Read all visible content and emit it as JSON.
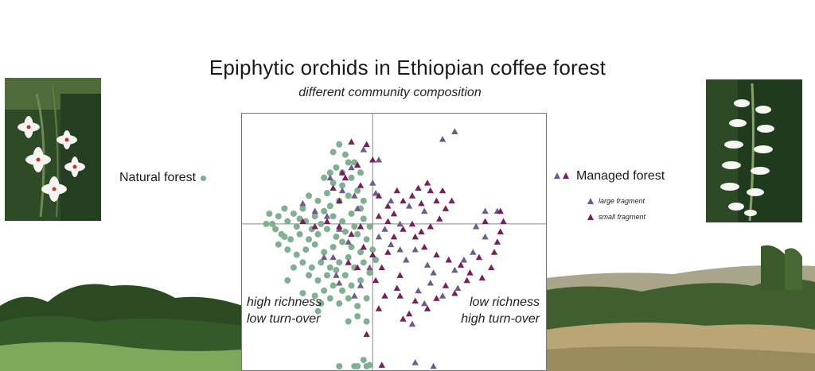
{
  "title": "Epiphytic orchids in Ethiopian coffee forest",
  "subtitle": "different community composition",
  "legend": {
    "natural": "Natural forest",
    "managed": "Managed forest",
    "large": "large fragment",
    "small": "small fragment"
  },
  "annotations": {
    "left_line1": "high richness",
    "left_line2": "low turn-over",
    "right_line1": "low richness",
    "right_line2": "high turn-over"
  },
  "colors": {
    "natural": "#7fb08f",
    "large": "#6d5b8f",
    "small": "#7a1f5c"
  },
  "chart_data": {
    "type": "scatter",
    "xlim": [
      0,
      100
    ],
    "ylim": [
      0,
      100
    ],
    "axes_lines": {
      "x": 43,
      "y": 57
    },
    "series": [
      {
        "name": "Natural forest",
        "marker": "circle",
        "points": [
          [
            32,
            88
          ],
          [
            34,
            84
          ],
          [
            35,
            81
          ],
          [
            31,
            79
          ],
          [
            29,
            77
          ],
          [
            27,
            75
          ],
          [
            30,
            73
          ],
          [
            33,
            72
          ],
          [
            36,
            75
          ],
          [
            38,
            70
          ],
          [
            35,
            68
          ],
          [
            32,
            66
          ],
          [
            28,
            69
          ],
          [
            25,
            66
          ],
          [
            22,
            68
          ],
          [
            20,
            63
          ],
          [
            17,
            61
          ],
          [
            14,
            63
          ],
          [
            12,
            60
          ],
          [
            15,
            58
          ],
          [
            18,
            56
          ],
          [
            21,
            58
          ],
          [
            24,
            60
          ],
          [
            27,
            62
          ],
          [
            30,
            60
          ],
          [
            33,
            58
          ],
          [
            36,
            61
          ],
          [
            39,
            63
          ],
          [
            40,
            59
          ],
          [
            37,
            56
          ],
          [
            34,
            54
          ],
          [
            31,
            52
          ],
          [
            28,
            55
          ],
          [
            25,
            53
          ],
          [
            22,
            51
          ],
          [
            19,
            53
          ],
          [
            16,
            51
          ],
          [
            13,
            53
          ],
          [
            11,
            55
          ],
          [
            10,
            57
          ],
          [
            12,
            49
          ],
          [
            15,
            47
          ],
          [
            18,
            45
          ],
          [
            21,
            47
          ],
          [
            24,
            49
          ],
          [
            27,
            46
          ],
          [
            30,
            48
          ],
          [
            33,
            50
          ],
          [
            36,
            48
          ],
          [
            39,
            46
          ],
          [
            41,
            51
          ],
          [
            38,
            53
          ],
          [
            35,
            44
          ],
          [
            32,
            42
          ],
          [
            29,
            40
          ],
          [
            26,
            42
          ],
          [
            23,
            40
          ],
          [
            20,
            42
          ],
          [
            17,
            40
          ],
          [
            22,
            37
          ],
          [
            25,
            35
          ],
          [
            28,
            37
          ],
          [
            31,
            39
          ],
          [
            34,
            37
          ],
          [
            37,
            40
          ],
          [
            40,
            42
          ],
          [
            42,
            38
          ],
          [
            39,
            35
          ],
          [
            36,
            33
          ],
          [
            33,
            31
          ],
          [
            30,
            33
          ],
          [
            27,
            31
          ],
          [
            24,
            29
          ],
          [
            26,
            26
          ],
          [
            29,
            28
          ],
          [
            32,
            26
          ],
          [
            35,
            28
          ],
          [
            38,
            25
          ],
          [
            41,
            28
          ],
          [
            38,
            21
          ],
          [
            35,
            19
          ],
          [
            41,
            19
          ],
          [
            25,
            23
          ],
          [
            20,
            30
          ],
          [
            15,
            35
          ],
          [
            8,
            57
          ],
          [
            9,
            61
          ],
          [
            43,
            47
          ],
          [
            44,
            43
          ],
          [
            42,
            56
          ],
          [
            40,
            66
          ],
          [
            37,
            81
          ],
          [
            39,
            77
          ],
          [
            30,
            85
          ],
          [
            33,
            77
          ],
          [
            29,
            64
          ],
          [
            26,
            57
          ],
          [
            23,
            55
          ],
          [
            19,
            59
          ],
          [
            14,
            52
          ],
          [
            38,
            1
          ],
          [
            40,
            4
          ],
          [
            42,
            2
          ],
          [
            37,
            -2
          ],
          [
            41,
            -4
          ],
          [
            32,
            1
          ]
        ]
      },
      {
        "name": "large fragment",
        "marker": "triangle",
        "points": [
          [
            70,
            93
          ],
          [
            66,
            90
          ],
          [
            45,
            82
          ],
          [
            40,
            86
          ],
          [
            36,
            79
          ],
          [
            43,
            73
          ],
          [
            44,
            69
          ],
          [
            38,
            63
          ],
          [
            49,
            66
          ],
          [
            55,
            64
          ],
          [
            60,
            62
          ],
          [
            52,
            57
          ],
          [
            47,
            55
          ],
          [
            45,
            52
          ],
          [
            49,
            49
          ],
          [
            52,
            47
          ],
          [
            57,
            47
          ],
          [
            54,
            43
          ],
          [
            61,
            41
          ],
          [
            63,
            38
          ],
          [
            70,
            39
          ],
          [
            73,
            43
          ],
          [
            76,
            46
          ],
          [
            80,
            52
          ],
          [
            77,
            56
          ],
          [
            80,
            62
          ],
          [
            84,
            62
          ],
          [
            71,
            32
          ],
          [
            66,
            29
          ],
          [
            60,
            26
          ],
          [
            58,
            31
          ],
          [
            62,
            34
          ],
          [
            56,
            18
          ],
          [
            63,
            0
          ],
          [
            57,
            3
          ],
          [
            32,
            55
          ],
          [
            28,
            60
          ],
          [
            24,
            62
          ],
          [
            20,
            65
          ],
          [
            35,
            50
          ],
          [
            42,
            40
          ],
          [
            30,
            44
          ],
          [
            39,
            33
          ],
          [
            37,
            29
          ],
          [
            32,
            34
          ],
          [
            37,
            68
          ],
          [
            29,
            75
          ],
          [
            33,
            70
          ],
          [
            27,
            44
          ],
          [
            31,
            37
          ]
        ]
      },
      {
        "name": "small fragment",
        "marker": "triangle",
        "points": [
          [
            36,
            89
          ],
          [
            41,
            88
          ],
          [
            43,
            82
          ],
          [
            38,
            80
          ],
          [
            33,
            77
          ],
          [
            30,
            71
          ],
          [
            32,
            66
          ],
          [
            45,
            68
          ],
          [
            48,
            64
          ],
          [
            50,
            61
          ],
          [
            53,
            66
          ],
          [
            56,
            68
          ],
          [
            59,
            65
          ],
          [
            62,
            70
          ],
          [
            64,
            66
          ],
          [
            67,
            63
          ],
          [
            65,
            59
          ],
          [
            62,
            56
          ],
          [
            59,
            54
          ],
          [
            56,
            57
          ],
          [
            53,
            55
          ],
          [
            50,
            52
          ],
          [
            48,
            58
          ],
          [
            57,
            52
          ],
          [
            60,
            48
          ],
          [
            64,
            45
          ],
          [
            68,
            43
          ],
          [
            72,
            41
          ],
          [
            75,
            38
          ],
          [
            79,
            36
          ],
          [
            82,
            40
          ],
          [
            83,
            46
          ],
          [
            84,
            50
          ],
          [
            85,
            54
          ],
          [
            86,
            58
          ],
          [
            85,
            62
          ],
          [
            80,
            58
          ],
          [
            78,
            44
          ],
          [
            74,
            35
          ],
          [
            70,
            30
          ],
          [
            67,
            33
          ],
          [
            64,
            28
          ],
          [
            61,
            24
          ],
          [
            57,
            27
          ],
          [
            55,
            22
          ],
          [
            53,
            20
          ],
          [
            45,
            24
          ],
          [
            47,
            29
          ],
          [
            51,
            32
          ],
          [
            44,
            35
          ],
          [
            46,
            40
          ],
          [
            43,
            45
          ],
          [
            48,
            46
          ],
          [
            40,
            48
          ],
          [
            36,
            53
          ],
          [
            32,
            56
          ],
          [
            28,
            58
          ],
          [
            24,
            56
          ],
          [
            20,
            58
          ],
          [
            39,
            56
          ],
          [
            45,
            60
          ],
          [
            51,
            70
          ],
          [
            58,
            71
          ],
          [
            61,
            73
          ],
          [
            66,
            70
          ],
          [
            69,
            66
          ],
          [
            35,
            42
          ],
          [
            38,
            40
          ],
          [
            52,
            37
          ],
          [
            52,
            29
          ],
          [
            34,
            75
          ],
          [
            39,
            72
          ],
          [
            46,
            2
          ],
          [
            41,
            14
          ]
        ]
      }
    ]
  }
}
